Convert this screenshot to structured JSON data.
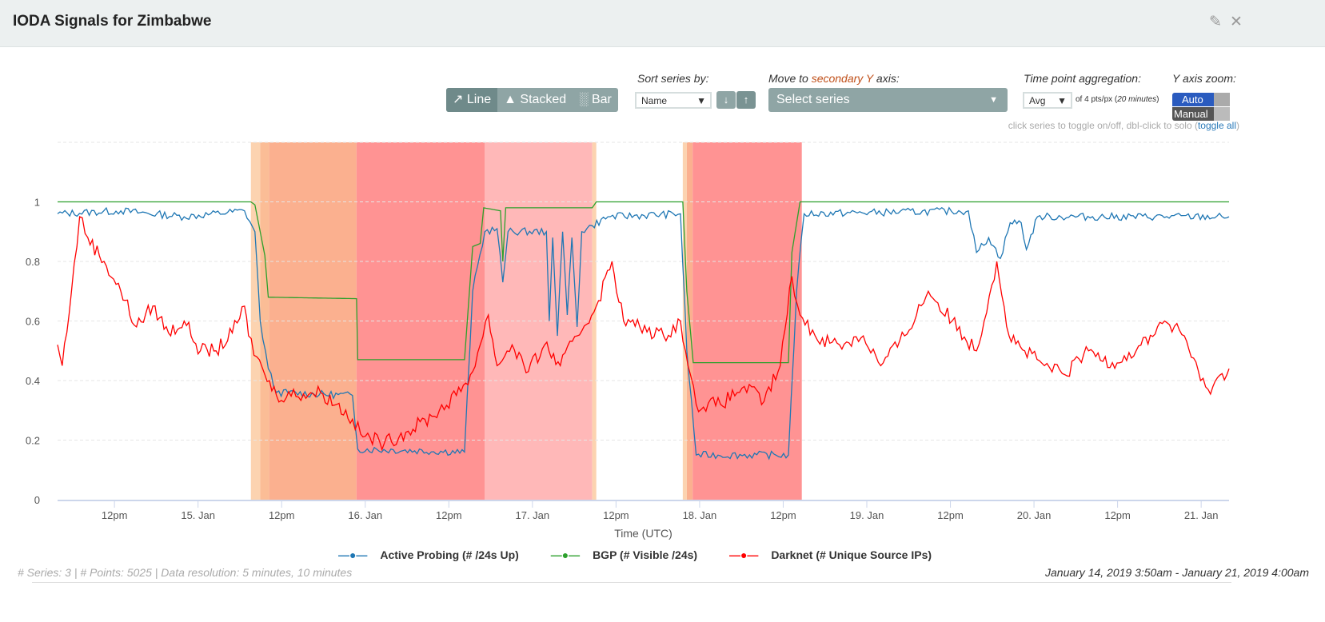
{
  "title": "IODA Signals for Zimbabwe",
  "icons": {
    "edit": "edit-icon",
    "close": "close-icon"
  },
  "controls": {
    "chart_types": [
      {
        "label": "Line",
        "icon": "line-chart-icon"
      },
      {
        "label": "Stacked",
        "icon": "area-chart-icon"
      },
      {
        "label": "Bar",
        "icon": "bar-chart-icon"
      }
    ],
    "active_chart_type": "Line",
    "sort_label": "Sort series by:",
    "sort_value": "Name",
    "secondary_label_pre": "Move to ",
    "secondary_label_hl": "secondary Y",
    "secondary_label_post": " axis:",
    "secondary_placeholder": "Select series",
    "aggregation_label": "Time point aggregation:",
    "aggregation_value": "Avg",
    "aggregation_note_pre": "of 4 pts/px (",
    "aggregation_note_em": "20 minutes",
    "aggregation_note_post": ")",
    "yzoom_label": "Y axis zoom:",
    "yzoom_auto": "Auto",
    "yzoom_manual": "Manual",
    "hint": "click series to toggle on/off, dbl-click to solo (",
    "hint_link": "toggle all",
    "hint_end": ")"
  },
  "footer": {
    "series_label": "# Series: ",
    "series_count": "3",
    "points_label": " | # Points: ",
    "points_count": "5025",
    "res_label": " | Data resolution: ",
    "res_value": "5 minutes, 10 minutes",
    "range": "January 14, 2019 3:50am - January 21, 2019 4:00am"
  },
  "chart_data": {
    "type": "line",
    "xlabel": "Time (UTC)",
    "xlim": [
      "2019-01-14T03:50",
      "2019-01-21T04:00"
    ],
    "ylim": [
      0,
      1.2
    ],
    "yticks": [
      0,
      0.2,
      0.4,
      0.6,
      0.8,
      1
    ],
    "ytick_labels": [
      "0",
      "0.2",
      "0.4",
      "0.6",
      "0.8",
      "1"
    ],
    "xticks": [
      {
        "t": "2019-01-14T12:00",
        "label": "12pm"
      },
      {
        "t": "2019-01-15T00:00",
        "label": "15. Jan"
      },
      {
        "t": "2019-01-15T12:00",
        "label": "12pm"
      },
      {
        "t": "2019-01-16T00:00",
        "label": "16. Jan"
      },
      {
        "t": "2019-01-16T12:00",
        "label": "12pm"
      },
      {
        "t": "2019-01-17T00:00",
        "label": "17. Jan"
      },
      {
        "t": "2019-01-17T12:00",
        "label": "12pm"
      },
      {
        "t": "2019-01-18T00:00",
        "label": "18. Jan"
      },
      {
        "t": "2019-01-18T12:00",
        "label": "12pm"
      },
      {
        "t": "2019-01-19T00:00",
        "label": "19. Jan"
      },
      {
        "t": "2019-01-19T12:00",
        "label": "12pm"
      },
      {
        "t": "2019-01-20T00:00",
        "label": "20. Jan"
      },
      {
        "t": "2019-01-20T12:00",
        "label": "12pm"
      },
      {
        "t": "2019-01-21T00:00",
        "label": "21. Jan"
      }
    ],
    "grid": true,
    "legend_position": "bottom",
    "outage_bands": [
      {
        "from": "2019-01-15T07:35",
        "to": "2019-01-15T08:55",
        "color": "#fcd3b0"
      },
      {
        "from": "2019-01-15T08:55",
        "to": "2019-01-15T10:10",
        "color": "#fbbd96"
      },
      {
        "from": "2019-01-15T10:10",
        "to": "2019-01-15T22:45",
        "color": "#fbb08f"
      },
      {
        "from": "2019-01-15T22:45",
        "to": "2019-01-16T17:10",
        "color": "#ff9393"
      },
      {
        "from": "2019-01-16T17:10",
        "to": "2019-01-17T08:35",
        "color": "#ffb8b8"
      },
      {
        "from": "2019-01-17T08:35",
        "to": "2019-01-17T09:10",
        "color": "#fcd3b0"
      },
      {
        "from": "2019-01-17T21:35",
        "to": "2019-01-17T22:10",
        "color": "#fcd3b0"
      },
      {
        "from": "2019-01-17T22:10",
        "to": "2019-01-17T23:00",
        "color": "#fbb08f"
      },
      {
        "from": "2019-01-17T23:00",
        "to": "2019-01-18T14:40",
        "color": "#ff9393"
      }
    ],
    "series": [
      {
        "name": "Active Probing (# /24s Up)",
        "color": "#1f77b4",
        "points": [
          [
            "2019-01-14T03:50",
            0.96
          ],
          [
            "2019-01-14T12:55",
            0.97
          ],
          [
            "2019-01-14T22:00",
            0.95
          ],
          [
            "2019-01-15T06:40",
            0.97
          ],
          [
            "2019-01-15T08:10",
            0.9
          ],
          [
            "2019-01-15T08:55",
            0.6
          ],
          [
            "2019-01-15T10:05",
            0.44
          ],
          [
            "2019-01-15T11:15",
            0.36
          ],
          [
            "2019-01-15T22:10",
            0.35
          ],
          [
            "2019-01-15T22:55",
            0.17
          ],
          [
            "2019-01-16T14:15",
            0.16
          ],
          [
            "2019-01-16T15:25",
            0.7
          ],
          [
            "2019-01-16T17:10",
            0.9
          ],
          [
            "2019-01-16T18:55",
            0.91
          ],
          [
            "2019-01-16T19:45",
            0.73
          ],
          [
            "2019-01-16T20:30",
            0.9
          ],
          [
            "2019-01-17T02:00",
            0.9
          ],
          [
            "2019-01-17T02:25",
            0.6
          ],
          [
            "2019-01-17T02:55",
            0.88
          ],
          [
            "2019-01-17T03:35",
            0.55
          ],
          [
            "2019-01-17T04:20",
            0.9
          ],
          [
            "2019-01-17T05:00",
            0.62
          ],
          [
            "2019-01-17T05:40",
            0.88
          ],
          [
            "2019-01-17T06:25",
            0.58
          ],
          [
            "2019-01-17T07:05",
            0.9
          ],
          [
            "2019-01-17T08:35",
            0.92
          ],
          [
            "2019-01-17T10:50",
            0.95
          ],
          [
            "2019-01-17T21:15",
            0.96
          ],
          [
            "2019-01-17T22:10",
            0.5
          ],
          [
            "2019-01-17T23:30",
            0.15
          ],
          [
            "2019-01-18T12:45",
            0.15
          ],
          [
            "2019-01-18T13:55",
            0.7
          ],
          [
            "2019-01-18T15:00",
            0.96
          ],
          [
            "2019-01-19T14:35",
            0.97
          ],
          [
            "2019-01-19T15:45",
            0.83
          ],
          [
            "2019-01-19T17:30",
            0.88
          ],
          [
            "2019-01-19T19:10",
            0.81
          ],
          [
            "2019-01-19T20:35",
            0.93
          ],
          [
            "2019-01-19T22:10",
            0.93
          ],
          [
            "2019-01-19T22:55",
            0.84
          ],
          [
            "2019-01-20T00:30",
            0.95
          ],
          [
            "2019-01-21T04:00",
            0.95
          ]
        ]
      },
      {
        "name": "BGP (# Visible /24s)",
        "color": "#2ca02c",
        "points": [
          [
            "2019-01-14T03:50",
            1.0
          ],
          [
            "2019-01-15T07:35",
            1.0
          ],
          [
            "2019-01-15T08:10",
            0.99
          ],
          [
            "2019-01-15T09:35",
            0.82
          ],
          [
            "2019-01-15T10:05",
            0.68
          ],
          [
            "2019-01-15T22:45",
            0.675
          ],
          [
            "2019-01-15T22:55",
            0.47
          ],
          [
            "2019-01-16T14:15",
            0.47
          ],
          [
            "2019-01-16T15:25",
            0.85
          ],
          [
            "2019-01-16T16:30",
            0.86
          ],
          [
            "2019-01-16T17:00",
            0.98
          ],
          [
            "2019-01-16T19:25",
            0.97
          ],
          [
            "2019-01-16T19:45",
            0.8
          ],
          [
            "2019-01-16T20:10",
            0.98
          ],
          [
            "2019-01-17T08:35",
            0.98
          ],
          [
            "2019-01-17T09:10",
            1.0
          ],
          [
            "2019-01-17T21:35",
            1.0
          ],
          [
            "2019-01-17T22:10",
            0.7
          ],
          [
            "2019-01-17T23:05",
            0.46
          ],
          [
            "2019-01-18T12:45",
            0.46
          ],
          [
            "2019-01-18T13:15",
            0.83
          ],
          [
            "2019-01-18T14:25",
            1.0
          ],
          [
            "2019-01-21T04:00",
            1.0
          ]
        ]
      },
      {
        "name": "Darknet (# Unique Source IPs)",
        "color": "#ff0000",
        "points": [
          [
            "2019-01-14T03:50",
            0.52
          ],
          [
            "2019-01-14T04:30",
            0.45
          ],
          [
            "2019-01-14T05:50",
            0.7
          ],
          [
            "2019-01-14T07:00",
            0.95
          ],
          [
            "2019-01-14T08:10",
            0.88
          ],
          [
            "2019-01-14T10:30",
            0.8
          ],
          [
            "2019-01-14T12:55",
            0.7
          ],
          [
            "2019-01-14T15:10",
            0.58
          ],
          [
            "2019-01-14T17:30",
            0.65
          ],
          [
            "2019-01-14T19:45",
            0.56
          ],
          [
            "2019-01-14T22:00",
            0.6
          ],
          [
            "2019-01-15T00:20",
            0.5
          ],
          [
            "2019-01-15T02:35",
            0.5
          ],
          [
            "2019-01-15T04:55",
            0.56
          ],
          [
            "2019-01-15T06:40",
            0.65
          ],
          [
            "2019-01-15T07:15",
            0.55
          ],
          [
            "2019-01-15T08:25",
            0.48
          ],
          [
            "2019-01-15T09:35",
            0.42
          ],
          [
            "2019-01-15T11:15",
            0.35
          ],
          [
            "2019-01-15T17:35",
            0.36
          ],
          [
            "2019-01-15T19:55",
            0.32
          ],
          [
            "2019-01-15T22:10",
            0.27
          ],
          [
            "2019-01-15T23:20",
            0.22
          ],
          [
            "2019-01-16T02:45",
            0.19
          ],
          [
            "2019-01-16T06:10",
            0.23
          ],
          [
            "2019-01-16T09:35",
            0.28
          ],
          [
            "2019-01-16T13:05",
            0.35
          ],
          [
            "2019-01-16T15:25",
            0.43
          ],
          [
            "2019-01-16T16:30",
            0.52
          ],
          [
            "2019-01-16T17:40",
            0.62
          ],
          [
            "2019-01-16T18:55",
            0.45
          ],
          [
            "2019-01-16T21:05",
            0.52
          ],
          [
            "2019-01-16T23:25",
            0.43
          ],
          [
            "2019-01-17T01:45",
            0.52
          ],
          [
            "2019-01-17T04:00",
            0.45
          ],
          [
            "2019-01-17T06:25",
            0.55
          ],
          [
            "2019-01-17T09:10",
            0.65
          ],
          [
            "2019-01-17T11:25",
            0.8
          ],
          [
            "2019-01-17T13:05",
            0.6
          ],
          [
            "2019-01-17T15:25",
            0.58
          ],
          [
            "2019-01-17T18:50",
            0.55
          ],
          [
            "2019-01-17T21:15",
            0.6
          ],
          [
            "2019-01-17T22:20",
            0.45
          ],
          [
            "2019-01-17T23:30",
            0.32
          ],
          [
            "2019-01-18T03:00",
            0.32
          ],
          [
            "2019-01-18T06:25",
            0.38
          ],
          [
            "2019-01-18T09:15",
            0.33
          ],
          [
            "2019-01-18T11:35",
            0.45
          ],
          [
            "2019-01-18T13:15",
            0.75
          ],
          [
            "2019-01-18T14:25",
            0.62
          ],
          [
            "2019-01-18T16:35",
            0.55
          ],
          [
            "2019-01-18T20:05",
            0.52
          ],
          [
            "2019-01-18T23:30",
            0.55
          ],
          [
            "2019-01-19T02:00",
            0.45
          ],
          [
            "2019-01-19T05:25",
            0.55
          ],
          [
            "2019-01-19T08:50",
            0.7
          ],
          [
            "2019-01-19T12:15",
            0.6
          ],
          [
            "2019-01-19T15:45",
            0.5
          ],
          [
            "2019-01-19T18:40",
            0.8
          ],
          [
            "2019-01-19T20:25",
            0.55
          ],
          [
            "2019-01-19T22:40",
            0.5
          ],
          [
            "2019-01-20T01:30",
            0.45
          ],
          [
            "2019-01-20T04:25",
            0.42
          ],
          [
            "2019-01-20T07:50",
            0.5
          ],
          [
            "2019-01-20T11:15",
            0.46
          ],
          [
            "2019-01-20T14:40",
            0.5
          ],
          [
            "2019-01-20T18:45",
            0.6
          ],
          [
            "2019-01-20T21:35",
            0.55
          ],
          [
            "2019-01-20T23:55",
            0.4
          ],
          [
            "2019-01-21T01:00",
            0.37
          ],
          [
            "2019-01-21T04:00",
            0.44
          ]
        ]
      }
    ]
  }
}
